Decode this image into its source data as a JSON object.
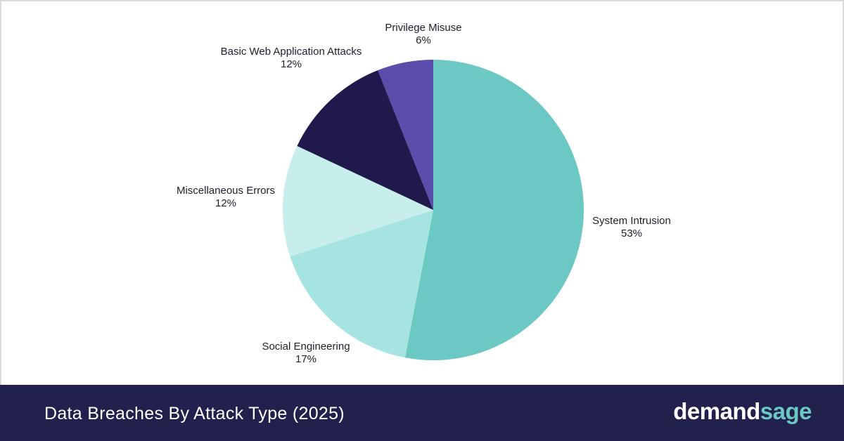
{
  "chart_data": {
    "type": "pie",
    "title": "Data Breaches By Attack Type (2025)",
    "start_angle_deg": 0,
    "direction": "clockwise",
    "slices": [
      {
        "label": "System Intrusion",
        "value": 53,
        "display": "53%",
        "color": "#6cc8c3"
      },
      {
        "label": "Social Engineering",
        "value": 17,
        "display": "17%",
        "color": "#a5e4e0"
      },
      {
        "label": "Miscellaneous Errors",
        "value": 12,
        "display": "12%",
        "color": "#c7eeeb"
      },
      {
        "label": "Basic Web Application Attacks",
        "value": 12,
        "display": "12%",
        "color": "#1f1a4b"
      },
      {
        "label": "Privilege Misuse",
        "value": 6,
        "display": "6%",
        "color": "#5a4dab"
      }
    ]
  },
  "footer": {
    "title": "Data Breaches By Attack Type (2025)",
    "brand_part1": "demand",
    "brand_part2": "sage"
  },
  "colors": {
    "footer_bg": "#22204d",
    "brand_accent": "#6ac9c4"
  }
}
